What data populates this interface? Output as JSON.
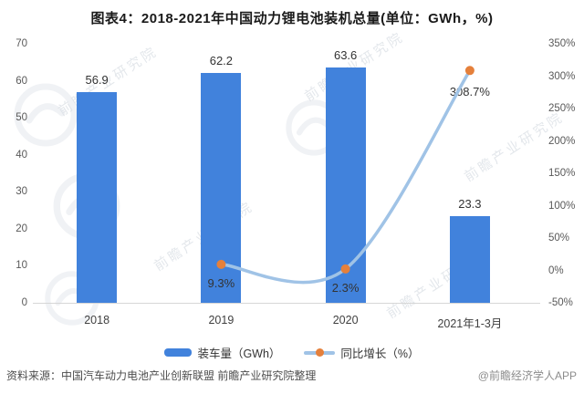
{
  "title": "图表4：2018-2021年中国动力锂电池装机总量(单位：GWh，%)",
  "chart_data": {
    "type": "combo",
    "categories": [
      "2018",
      "2019",
      "2020",
      "2021年1-3月"
    ],
    "series": [
      {
        "name": "装车量（GWh）",
        "kind": "bar",
        "axis": "left",
        "color": "#4182dc",
        "values": [
          56.9,
          62.2,
          63.6,
          23.3
        ],
        "labels": [
          "56.9",
          "62.2",
          "63.6",
          "23.3"
        ]
      },
      {
        "name": "同比增长（%）",
        "kind": "line",
        "axis": "right",
        "line_color": "#a0c3e6",
        "marker_color": "#e5803b",
        "values": [
          null,
          9.3,
          2.3,
          308.7
        ],
        "labels": [
          "",
          "9.3%",
          "2.3%",
          "308.7%"
        ]
      }
    ],
    "left_axis": {
      "min": 0,
      "max": 70,
      "step": 10,
      "ticks": [
        "0",
        "10",
        "20",
        "30",
        "40",
        "50",
        "60",
        "70"
      ]
    },
    "right_axis": {
      "min": -50,
      "max": 350,
      "step": 50,
      "ticks": [
        "-50%",
        "0%",
        "50%",
        "100%",
        "150%",
        "200%",
        "250%",
        "300%",
        "350%"
      ]
    },
    "grid": false,
    "legend_position": "bottom"
  },
  "legend": {
    "bar_label": "装车量（GWh）",
    "line_label": "同比增长（%）"
  },
  "footer": {
    "source": "资料来源：中国汽车动力电池产业创新联盟 前瞻产业研究院整理",
    "credit": "@前瞻经济学人APP"
  },
  "watermark": {
    "text": "前瞻产业研究院"
  },
  "colors": {
    "bar": "#4182dc",
    "line": "#a0c3e6",
    "marker": "#e5803b",
    "axis_text": "#595959",
    "label_text": "#333333",
    "axis_line": "#d6d6d6"
  }
}
